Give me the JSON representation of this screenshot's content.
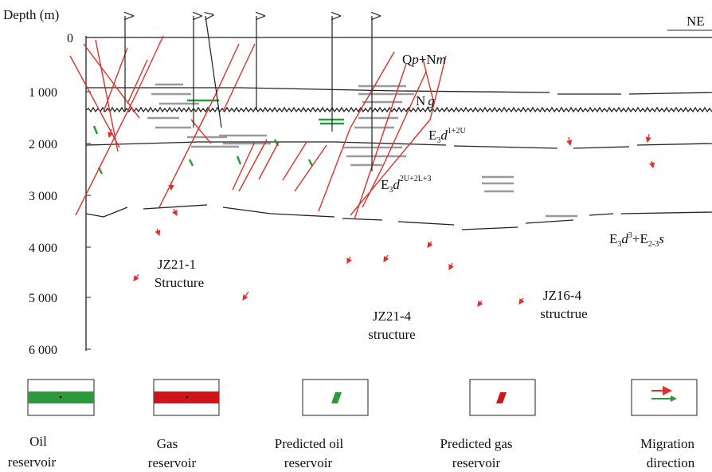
{
  "axis": {
    "title": "Depth (m)",
    "ticks": [
      "0",
      "1 000",
      "2 000",
      "3 000",
      "4 000",
      "5 000",
      "6 000"
    ]
  },
  "direction": "NE",
  "formations": [
    {
      "parts": [
        "Q",
        "p",
        "+N",
        "m"
      ]
    },
    {
      "parts": [
        "N",
        "g"
      ]
    },
    {
      "parts": [
        "E",
        "3",
        "d",
        "1+2U"
      ]
    },
    {
      "parts": [
        "E",
        "3",
        "d",
        "2U+2L+3"
      ]
    },
    {
      "parts": [
        "E",
        "3",
        "d",
        "3",
        "+E",
        "2-3",
        "s"
      ]
    }
  ],
  "structures": [
    {
      "lines": [
        "JZ21-1",
        "Structure"
      ]
    },
    {
      "lines": [
        "JZ21-4",
        "structure"
      ]
    },
    {
      "lines": [
        "JZ16-4",
        "structrue"
      ]
    }
  ],
  "legend": [
    {
      "lines": [
        "Oil",
        "reservoir"
      ]
    },
    {
      "lines": [
        "Gas",
        "reservoir"
      ]
    },
    {
      "lines": [
        "Predicted oil",
        "reservoir"
      ]
    },
    {
      "lines": [
        "Predicted gas",
        "reservoir"
      ]
    },
    {
      "lines": [
        "Migration",
        "direction"
      ]
    }
  ]
}
